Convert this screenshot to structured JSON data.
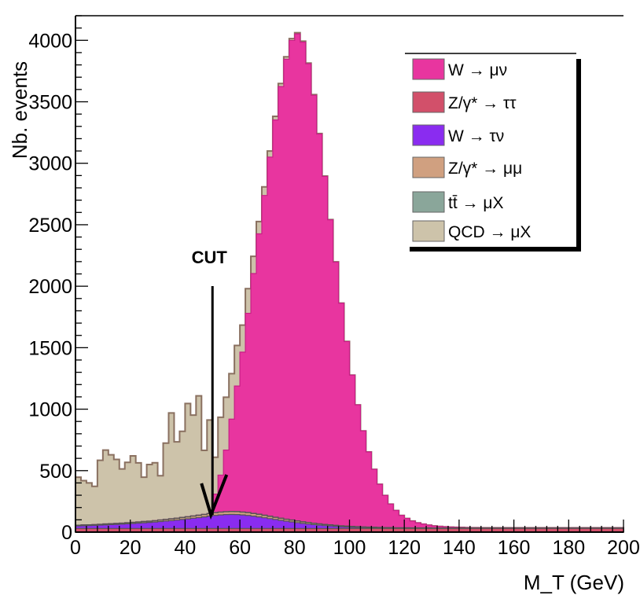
{
  "chart_data": {
    "type": "area",
    "stacked": true,
    "title": "",
    "xlabel": "M_T (GeV)",
    "ylabel": "Nb. events",
    "xlim": [
      0,
      200
    ],
    "ylim": [
      0,
      4200
    ],
    "x_ticks": [
      "0",
      "20",
      "40",
      "60",
      "80",
      "100",
      "120",
      "140",
      "160",
      "180",
      "200"
    ],
    "y_ticks": [
      "0",
      "500",
      "1000",
      "1500",
      "2000",
      "2500",
      "3000",
      "3500",
      "4000"
    ],
    "bin_width": 2,
    "legend_position": "top-right",
    "annotation": {
      "text": "CUT",
      "x": 50
    },
    "series": [
      {
        "name": "W → μν",
        "color": "#e8359f",
        "values": [
          0,
          0,
          0,
          0,
          0,
          0,
          0,
          0,
          0,
          0,
          0,
          0,
          0,
          0,
          0,
          0,
          0,
          0,
          0,
          0,
          0,
          0,
          0,
          0,
          0,
          150,
          300,
          500,
          750,
          1020,
          1300,
          1620,
          1950,
          2280,
          2600,
          2920,
          3230,
          3510,
          3740,
          3900,
          3960,
          3900,
          3730,
          3480,
          3170,
          2830,
          2480,
          2140,
          1810,
          1500,
          1230,
          990,
          780,
          610,
          470,
          350,
          260,
          190,
          140,
          100,
          75,
          55,
          40,
          30,
          22,
          16,
          12,
          9,
          7,
          5,
          4,
          3,
          2,
          2,
          1,
          1,
          1,
          1,
          1,
          1,
          1,
          1,
          1,
          1,
          1,
          1,
          1,
          1,
          1,
          1,
          1,
          1,
          1,
          1,
          1,
          1,
          1,
          1,
          1,
          1
        ]
      },
      {
        "name": "Z/γ* → ττ",
        "color": "#d2506a",
        "values": [
          30,
          30,
          30,
          30,
          30,
          30,
          30,
          30,
          30,
          30,
          30,
          30,
          30,
          30,
          30,
          30,
          30,
          30,
          30,
          30,
          30,
          30,
          30,
          30,
          30,
          30,
          30,
          30,
          30,
          30,
          30,
          30,
          30,
          30,
          30,
          30,
          30,
          30,
          30,
          30,
          30,
          30,
          30,
          30,
          30,
          30,
          30,
          30,
          30,
          30,
          30,
          30,
          30,
          30,
          30,
          30,
          30,
          30,
          30,
          30,
          30,
          30,
          30,
          30,
          30,
          30,
          30,
          30,
          30,
          30,
          30,
          30,
          30,
          30,
          30,
          30,
          30,
          30,
          30,
          30,
          30,
          30,
          30,
          30,
          30,
          30,
          30,
          30,
          30,
          30,
          30,
          30,
          30,
          30,
          30,
          30,
          30,
          30,
          30,
          30
        ]
      },
      {
        "name": "W → τν",
        "color": "#8a2cf0",
        "values": [
          20,
          22,
          23,
          25,
          27,
          29,
          31,
          33,
          35,
          38,
          40,
          43,
          46,
          49,
          52,
          56,
          60,
          64,
          68,
          73,
          78,
          83,
          88,
          94,
          100,
          106,
          110,
          113,
          114,
          113,
          110,
          106,
          100,
          94,
          87,
          80,
          73,
          66,
          59,
          53,
          47,
          41,
          36,
          31,
          27,
          23,
          20,
          17,
          14,
          12,
          10,
          8,
          7,
          6,
          5,
          4,
          3,
          3,
          2,
          2,
          2,
          1,
          1,
          1,
          1,
          1,
          1,
          1,
          1,
          1,
          1,
          1,
          1,
          1,
          1,
          1,
          1,
          1,
          1,
          1,
          1,
          1,
          1,
          1,
          1,
          1,
          1,
          1,
          1,
          1,
          1,
          1,
          1,
          1,
          1,
          1,
          1,
          1,
          1,
          1
        ]
      },
      {
        "name": "Z/γ* → μμ",
        "color": "#d0a080",
        "values": [
          5,
          5,
          5,
          5,
          5,
          6,
          6,
          6,
          7,
          7,
          8,
          8,
          9,
          9,
          10,
          11,
          12,
          13,
          14,
          15,
          16,
          17,
          18,
          19,
          20,
          21,
          22,
          22,
          23,
          23,
          22,
          22,
          21,
          20,
          19,
          18,
          17,
          16,
          15,
          14,
          13,
          12,
          11,
          10,
          9,
          8,
          8,
          7,
          6,
          6,
          5,
          5,
          4,
          4,
          4,
          3,
          3,
          3,
          2,
          2,
          2,
          2,
          2,
          2,
          2,
          1,
          1,
          1,
          1,
          1,
          1,
          1,
          1,
          1,
          1,
          1,
          1,
          1,
          1,
          1,
          1,
          1,
          1,
          1,
          1,
          1,
          1,
          1,
          1,
          1,
          1,
          1,
          1,
          1,
          1,
          1,
          1,
          1,
          1,
          1
        ]
      },
      {
        "name": "tt̄ → μX",
        "color": "#8aa69a",
        "values": [
          2,
          2,
          2,
          2,
          2,
          2,
          2,
          2,
          2,
          2,
          2,
          2,
          2,
          2,
          2,
          2,
          2,
          2,
          2,
          2,
          2,
          2,
          2,
          2,
          2,
          2,
          2,
          2,
          2,
          2,
          2,
          2,
          2,
          2,
          2,
          2,
          2,
          2,
          2,
          2,
          2,
          2,
          2,
          2,
          2,
          2,
          2,
          2,
          2,
          2,
          2,
          2,
          2,
          2,
          2,
          2,
          2,
          2,
          2,
          2,
          2,
          2,
          2,
          2,
          2,
          2,
          2,
          2,
          2,
          2,
          2,
          2,
          2,
          2,
          2,
          2,
          2,
          2,
          2,
          2,
          2,
          2,
          2,
          2,
          2,
          2,
          2,
          2,
          2,
          2,
          2,
          2,
          2,
          2,
          2,
          2,
          2,
          2,
          2,
          2
        ]
      },
      {
        "name": "QCD → μX",
        "color": "#cdc3aa",
        "values": [
          390,
          360,
          340,
          310,
          520,
          600,
          560,
          520,
          440,
          490,
          540,
          480,
          360,
          460,
          470,
          360,
          620,
          860,
          620,
          700,
          920,
          820,
          970,
          520,
          760,
          300,
          470,
          430,
          370,
          330,
          220,
          200,
          140,
          100,
          70,
          50,
          30,
          25,
          20,
          15,
          10,
          8,
          6,
          5,
          4,
          3,
          2,
          2,
          1,
          1,
          0,
          0,
          0,
          0,
          0,
          0,
          0,
          0,
          0,
          0,
          0,
          0,
          0,
          0,
          0,
          0,
          0,
          0,
          0,
          0,
          0,
          0,
          0,
          0,
          0,
          0,
          0,
          0,
          0,
          0,
          0,
          0,
          0,
          0,
          0,
          0,
          0,
          0,
          0,
          0,
          0,
          0,
          0,
          0,
          0,
          0,
          0,
          0,
          0,
          0
        ]
      }
    ]
  }
}
